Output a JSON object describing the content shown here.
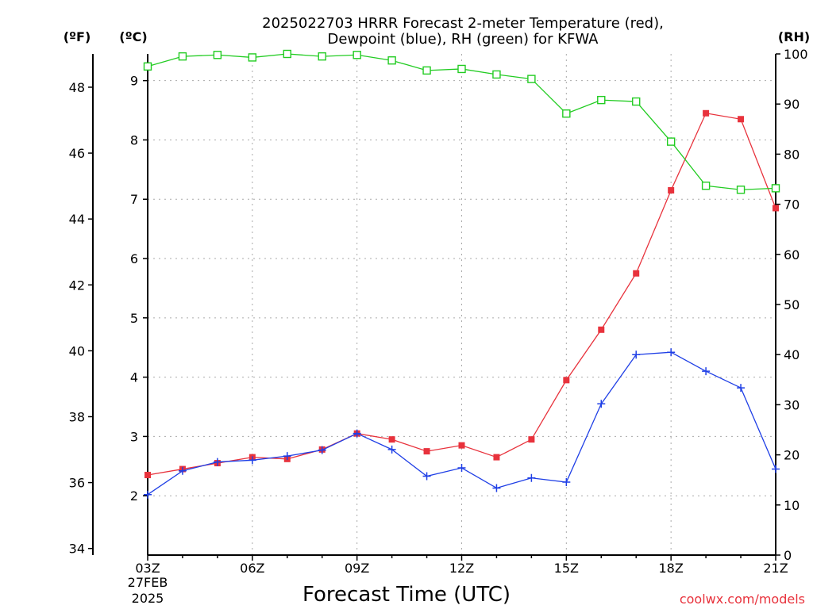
{
  "chart_data": {
    "type": "line",
    "title_line1": "2025022703 HRRR Forecast 2-meter Temperature (red),",
    "title_line2": "Dewpoint (blue), RH (green) for KFWA",
    "xlabel": "Forecast Time (UTC)",
    "credit": "coolwx.com/models",
    "x": [
      "03Z",
      "04Z",
      "05Z",
      "06Z",
      "07Z",
      "08Z",
      "09Z",
      "10Z",
      "11Z",
      "12Z",
      "13Z",
      "14Z",
      "15Z",
      "16Z",
      "17Z",
      "18Z",
      "19Z",
      "20Z",
      "21Z"
    ],
    "x_tick_labels": [
      "03Z",
      "06Z",
      "09Z",
      "12Z",
      "15Z",
      "18Z",
      "21Z"
    ],
    "x_date_label": [
      "27FEB",
      "2025"
    ],
    "unit_f": "(ºF)",
    "unit_c": "(ºC)",
    "unit_rh": "(RH)",
    "ylim_c": [
      1.0,
      9.45
    ],
    "ylim_f": [
      33.8,
      49.01
    ],
    "ylim_rh": [
      0,
      100
    ],
    "yticks_c": [
      2,
      3,
      4,
      5,
      6,
      7,
      8,
      9
    ],
    "yticks_f": [
      34,
      36,
      38,
      40,
      42,
      44,
      46,
      48
    ],
    "yticks_rh": [
      0,
      10,
      20,
      30,
      40,
      50,
      60,
      70,
      80,
      90,
      100
    ],
    "grid": true,
    "series": [
      {
        "name": "Temperature (red)",
        "axis": "c",
        "color": "#e8323c",
        "marker": "filled-square",
        "values": [
          2.35,
          2.45,
          2.55,
          2.65,
          2.62,
          2.78,
          3.05,
          2.95,
          2.75,
          2.85,
          2.65,
          2.95,
          3.95,
          4.8,
          5.75,
          7.15,
          8.45,
          8.35,
          6.85
        ]
      },
      {
        "name": "Dewpoint (blue)",
        "axis": "c",
        "color": "#1f3fe6",
        "marker": "plus",
        "values": [
          2.02,
          2.42,
          2.57,
          2.6,
          2.67,
          2.77,
          3.05,
          2.78,
          2.33,
          2.47,
          2.13,
          2.3,
          2.23,
          3.55,
          4.38,
          4.42,
          4.1,
          3.82,
          2.45
        ]
      },
      {
        "name": "RH (green)",
        "axis": "rh",
        "color": "#22cc22",
        "marker": "open-square",
        "values": [
          97.5,
          99.5,
          99.8,
          99.3,
          100,
          99.5,
          99.8,
          98.7,
          96.7,
          97,
          95.9,
          95,
          88.1,
          90.8,
          90.5,
          82.5,
          73.7,
          72.9,
          73.2
        ]
      }
    ]
  }
}
